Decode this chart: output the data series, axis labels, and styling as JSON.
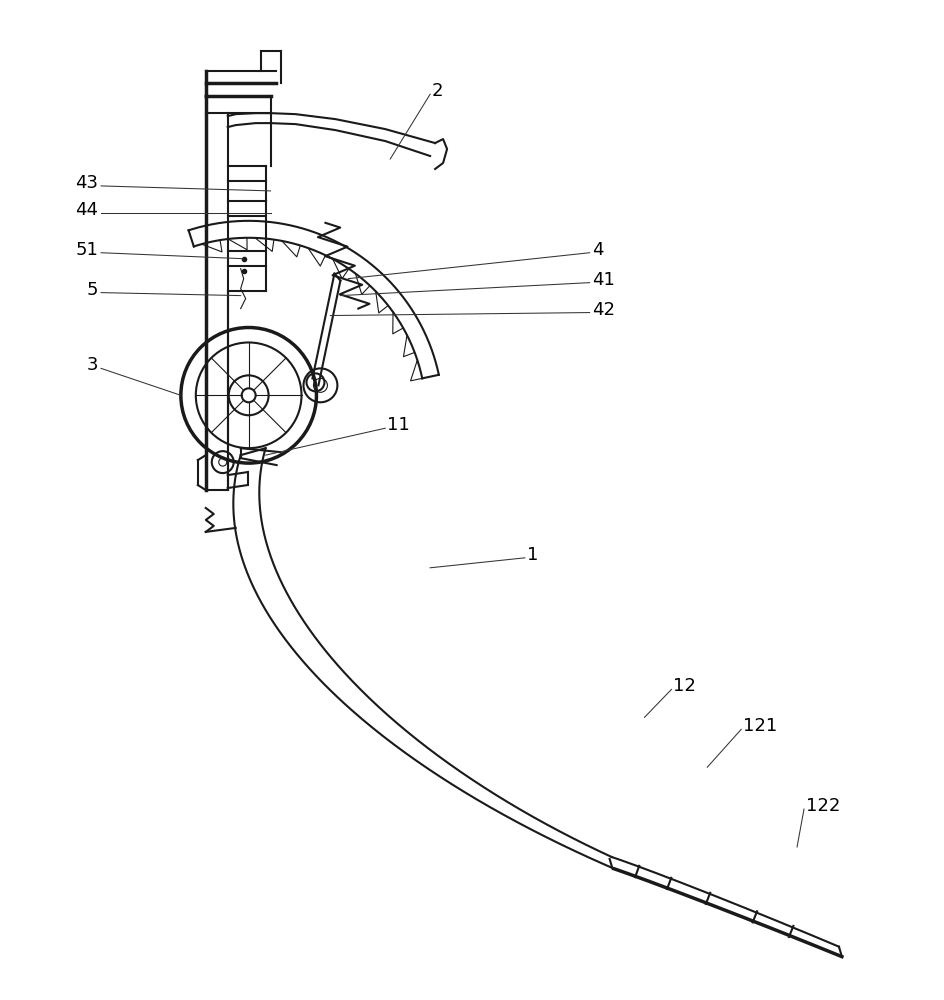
{
  "bg_color": "#ffffff",
  "line_color": "#1a1a1a",
  "label_color": "#000000",
  "figsize": [
    9.44,
    10.0
  ],
  "dpi": 100
}
